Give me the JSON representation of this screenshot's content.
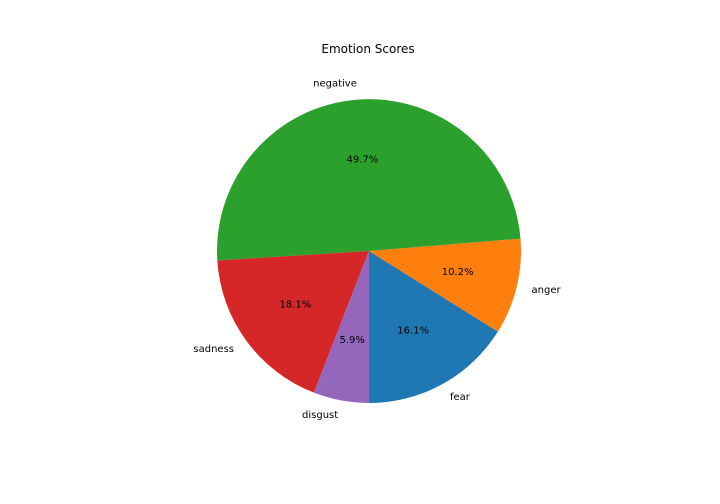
{
  "chart_data": {
    "type": "pie",
    "title": "Emotion Scores",
    "start_angle_deg": -90,
    "direction": "counterclockwise",
    "slices": [
      {
        "label": "fear",
        "value": 16.1,
        "pct_label": "16.1%",
        "color": "#1f77b4"
      },
      {
        "label": "anger",
        "value": 10.2,
        "pct_label": "10.2%",
        "color": "#ff7f0e"
      },
      {
        "label": "negative",
        "value": 49.7,
        "pct_label": "49.7%",
        "color": "#2ca02c"
      },
      {
        "label": "sadness",
        "value": 18.1,
        "pct_label": "18.1%",
        "color": "#d62728"
      },
      {
        "label": "disgust",
        "value": 5.9,
        "pct_label": "5.9%",
        "color": "#9467bd"
      }
    ]
  }
}
